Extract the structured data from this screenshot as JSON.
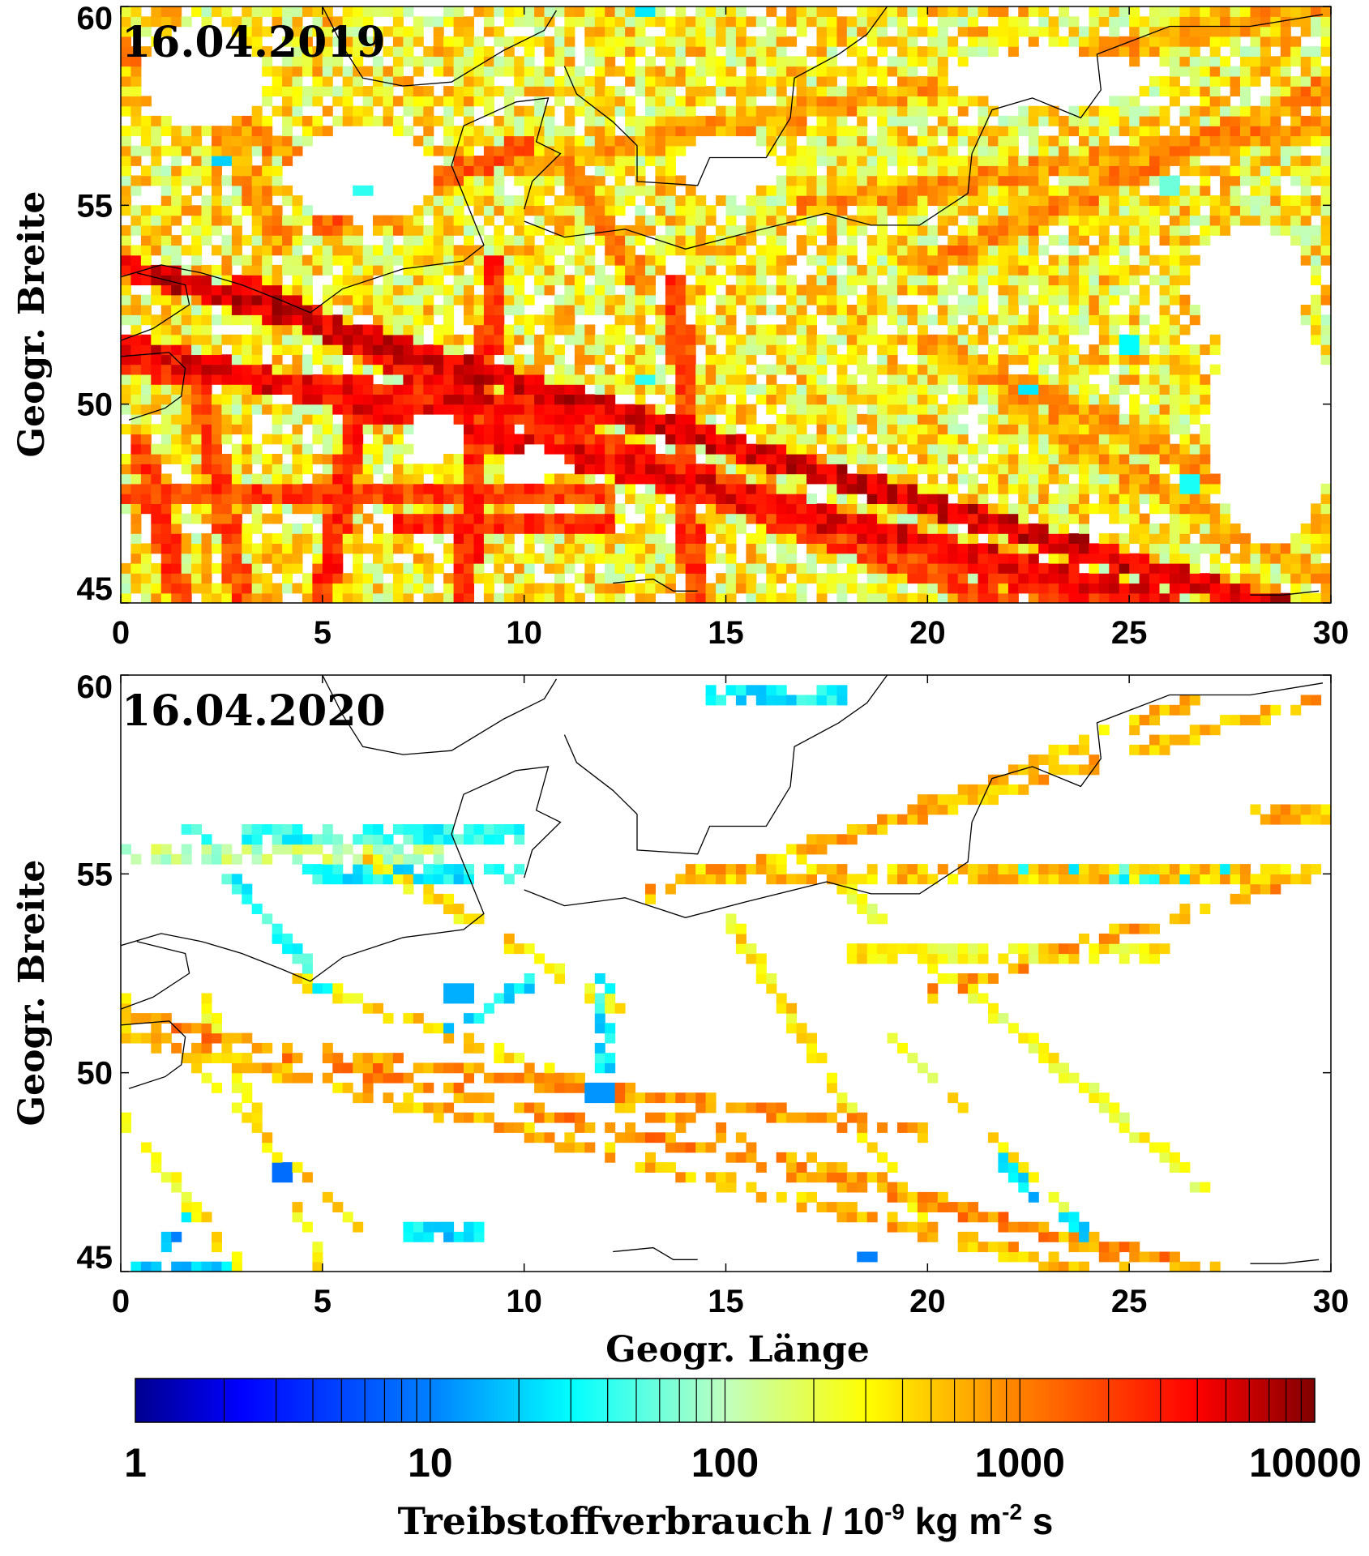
{
  "figure": {
    "x_axis_label": "Geogr. Länge",
    "y_axis_label": "Geogr. Breite",
    "colorbar": {
      "title_prefix": "Treibstoffverbrauch",
      "title_unit_part1": " / 10",
      "title_exponent1": "-9",
      "title_unit_part2": " kg m",
      "title_exponent2": "-2",
      "title_unit_part3": " s",
      "ticks": [
        "1",
        "10",
        "100",
        "1000",
        "10000"
      ],
      "tick_values": [
        1,
        10,
        100,
        1000,
        10000
      ],
      "scale": "log",
      "range": [
        1,
        10000
      ],
      "colors": [
        "#00008f",
        "#0000ff",
        "#0080ff",
        "#00ffff",
        "#c0ffc0",
        "#ffff00",
        "#ff8000",
        "#ff0000",
        "#800000"
      ]
    }
  },
  "chart_data": [
    {
      "type": "heatmap",
      "title": "16.04.2019",
      "xlabel": "",
      "ylabel": "Geogr. Breite",
      "xlim": [
        0,
        30
      ],
      "ylim": [
        45,
        60
      ],
      "x_ticks": [
        "0",
        "5",
        "10",
        "15",
        "20",
        "25",
        "30"
      ],
      "y_ticks": [
        "45",
        "50",
        "55",
        "60"
      ],
      "x_tick_values": [
        0,
        5,
        10,
        15,
        20,
        25,
        30
      ],
      "y_tick_values": [
        45,
        50,
        55,
        60
      ],
      "colorscale": "log",
      "value_range": [
        1,
        10000
      ],
      "background_level": 300,
      "coverage": 0.82,
      "shipping_lanes": [
        {
          "from": [
            0,
            53.5
          ],
          "to": [
            30,
            44.5
          ],
          "level": 5000
        },
        {
          "from": [
            0,
            51.5
          ],
          "to": [
            26,
            45
          ],
          "level": 4000
        },
        {
          "from": [
            0,
            51
          ],
          "to": [
            14,
            49.5
          ],
          "level": 3000
        },
        {
          "from": [
            3,
            53
          ],
          "to": [
            9,
            50
          ],
          "level": 4000
        },
        {
          "from": [
            9,
            50
          ],
          "to": [
            24,
            45
          ],
          "level": 2500
        },
        {
          "from": [
            9.3,
            53.5
          ],
          "to": [
            8.5,
            45
          ],
          "level": 2500
        },
        {
          "from": [
            6,
            50.5
          ],
          "to": [
            5,
            45
          ],
          "level": 2500
        },
        {
          "from": [
            13.8,
            53
          ],
          "to": [
            14.2,
            45
          ],
          "level": 2000
        },
        {
          "from": [
            0.5,
            49
          ],
          "to": [
            1.5,
            45
          ],
          "level": 2000
        },
        {
          "from": [
            2,
            50.5
          ],
          "to": [
            3,
            45
          ],
          "level": 1800
        },
        {
          "from": [
            0,
            47.8
          ],
          "to": [
            12,
            47.8
          ],
          "level": 2000
        },
        {
          "from": [
            7,
            47
          ],
          "to": [
            12,
            47
          ],
          "level": 2500
        },
        {
          "from": [
            12.5,
            48.5
          ],
          "to": [
            22,
            45
          ],
          "level": 2000
        },
        {
          "from": [
            20,
            53.5
          ],
          "to": [
            30,
            58
          ],
          "level": 900
        },
        {
          "from": [
            17,
            55
          ],
          "to": [
            30,
            57
          ],
          "level": 800
        },
        {
          "from": [
            10,
            56
          ],
          "to": [
            30,
            60
          ],
          "level": 700
        },
        {
          "from": [
            20,
            51.5
          ],
          "to": [
            30,
            47
          ],
          "level": 800
        },
        {
          "from": [
            22,
            50
          ],
          "to": [
            30,
            45.5
          ],
          "level": 700
        },
        {
          "from": [
            5,
            54.5
          ],
          "to": [
            10,
            56.5
          ],
          "level": 1500
        },
        {
          "from": [
            11,
            56
          ],
          "to": [
            13,
            53
          ],
          "level": 1000
        },
        {
          "from": [
            0,
            59
          ],
          "to": [
            7,
            54.5
          ],
          "level": 900
        },
        {
          "from": [
            1,
            60
          ],
          "to": [
            4,
            54
          ],
          "level": 800
        }
      ],
      "low_value_spots": [
        {
          "at": [
            22.5,
            50.3
          ],
          "level": 25
        },
        {
          "at": [
            2.5,
            56.2
          ],
          "level": 20
        },
        {
          "at": [
            6,
            55.4
          ],
          "level": 40
        },
        {
          "at": [
            13,
            50.7
          ],
          "level": 40
        },
        {
          "at": [
            25,
            51.5
          ],
          "level": 30
        },
        {
          "at": [
            26.5,
            48
          ],
          "level": 35
        },
        {
          "at": [
            13,
            59.8
          ],
          "level": 25
        },
        {
          "at": [
            26,
            55.5
          ],
          "level": 60
        }
      ],
      "empty_regions": [
        {
          "center": [
            6,
            55.8
          ],
          "radius": [
            1.8,
            1.2
          ]
        },
        {
          "center": [
            2,
            58.2
          ],
          "radius": [
            1.5,
            1.3
          ]
        },
        {
          "center": [
            7.8,
            49.2
          ],
          "radius": [
            0.7,
            0.6
          ]
        },
        {
          "center": [
            10.2,
            48.5
          ],
          "radius": [
            0.8,
            0.4
          ]
        },
        {
          "center": [
            23,
            58.2
          ],
          "radius": [
            2.5,
            0.7
          ]
        },
        {
          "center": [
            28,
            53
          ],
          "radius": [
            1.5,
            1.5
          ]
        },
        {
          "center": [
            28.5,
            49.5
          ],
          "radius": [
            1.5,
            3
          ]
        },
        {
          "center": [
            15,
            56
          ],
          "radius": [
            1.2,
            0.8
          ]
        }
      ]
    },
    {
      "type": "heatmap",
      "title": "16.04.2020",
      "xlabel": "Geogr. Länge",
      "ylabel": "Geogr. Breite",
      "xlim": [
        0,
        30
      ],
      "ylim": [
        45,
        60
      ],
      "x_ticks": [
        "0",
        "5",
        "10",
        "15",
        "20",
        "25",
        "30"
      ],
      "y_ticks": [
        "45",
        "50",
        "55",
        "60"
      ],
      "x_tick_values": [
        0,
        5,
        10,
        15,
        20,
        25,
        30
      ],
      "y_tick_values": [
        45,
        50,
        55,
        60
      ],
      "colorscale": "log",
      "value_range": [
        1,
        10000
      ],
      "background_level": 0,
      "coverage": 0.0,
      "shipping_lanes": [
        {
          "from": [
            0,
            51.5
          ],
          "to": [
            28,
            44.8
          ],
          "level": 900
        },
        {
          "from": [
            0,
            51
          ],
          "to": [
            24,
            45
          ],
          "level": 600
        },
        {
          "from": [
            5,
            50.5
          ],
          "to": [
            20,
            48.5
          ],
          "level": 800
        },
        {
          "from": [
            10,
            50
          ],
          "to": [
            25,
            45.3
          ],
          "level": 700
        },
        {
          "from": [
            4,
            52.5
          ],
          "to": [
            12,
            49.5
          ],
          "level": 400
        },
        {
          "from": [
            14,
            55
          ],
          "to": [
            30,
            55
          ],
          "level": 500
        },
        {
          "from": [
            13,
            54.5
          ],
          "to": [
            30,
            59.5
          ],
          "level": 600
        },
        {
          "from": [
            15.5,
            55
          ],
          "to": [
            27,
            59.5
          ],
          "level": 500
        },
        {
          "from": [
            20,
            52
          ],
          "to": [
            29.5,
            55
          ],
          "level": 700
        },
        {
          "from": [
            17.5,
            55
          ],
          "to": [
            27,
            47
          ],
          "level": 250
        },
        {
          "from": [
            19,
            51
          ],
          "to": [
            25,
            45
          ],
          "level": 300
        },
        {
          "from": [
            15,
            54
          ],
          "to": [
            20,
            46
          ],
          "level": 350
        },
        {
          "from": [
            0,
            52
          ],
          "to": [
            7,
            45
          ],
          "level": 400
        },
        {
          "from": [
            2,
            52
          ],
          "to": [
            5,
            45
          ],
          "level": 350
        },
        {
          "from": [
            0,
            49
          ],
          "to": [
            3,
            45
          ],
          "level": 300
        },
        {
          "from": [
            6,
            55.5
          ],
          "to": [
            12.5,
            51.5
          ],
          "level": 400
        },
        {
          "from": [
            1.5,
            56.5
          ],
          "to": [
            5,
            52.2
          ],
          "level": 40
        },
        {
          "from": [
            4.5,
            55
          ],
          "to": [
            10,
            55
          ],
          "level": 30
        },
        {
          "from": [
            10.5,
            52.5
          ],
          "to": [
            8,
            51
          ],
          "level": 25
        },
        {
          "from": [
            12,
            52.5
          ],
          "to": [
            12,
            50
          ],
          "level": 30
        },
        {
          "from": [
            3,
            56
          ],
          "to": [
            10,
            56
          ],
          "level": 40
        },
        {
          "from": [
            0,
            55.5
          ],
          "to": [
            8,
            55.5
          ],
          "level": 120
        },
        {
          "from": [
            14.5,
            59.5
          ],
          "to": [
            18,
            59.5
          ],
          "level": 30
        },
        {
          "from": [
            21,
            55
          ],
          "to": [
            28,
            55
          ],
          "level": 40
        },
        {
          "from": [
            7,
            46
          ],
          "to": [
            9,
            46
          ],
          "level": 25
        },
        {
          "from": [
            0.5,
            45.2
          ],
          "to": [
            2.5,
            45.2
          ],
          "level": 20
        },
        {
          "from": [
            2,
            47
          ],
          "to": [
            1,
            45.5
          ],
          "level": 15
        },
        {
          "from": [
            21.5,
            48
          ],
          "to": [
            24.5,
            45.5
          ],
          "level": 20
        },
        {
          "from": [
            18,
            53
          ],
          "to": [
            26,
            53
          ],
          "level": 300
        },
        {
          "from": [
            28,
            56.5
          ],
          "to": [
            30,
            56.5
          ],
          "level": 600
        }
      ],
      "low_value_spots": [
        {
          "at": [
            11.8,
            49.5
          ],
          "level": 12
        },
        {
          "at": [
            8.3,
            52
          ],
          "level": 15
        },
        {
          "at": [
            4,
            47.5
          ],
          "level": 8
        },
        {
          "at": [
            18.5,
            45.3
          ],
          "level": 10
        }
      ],
      "empty_regions": []
    }
  ]
}
